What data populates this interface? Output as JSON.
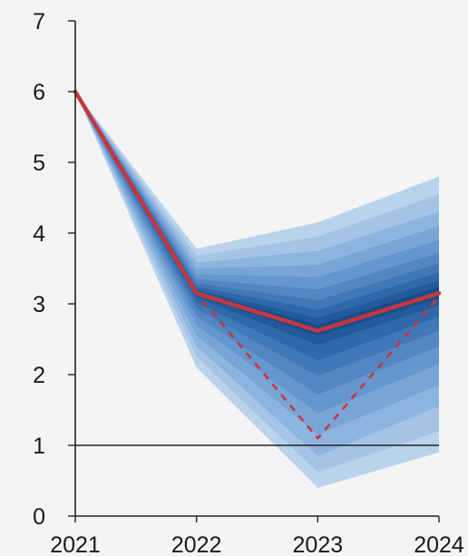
{
  "chart_data": {
    "type": "area",
    "title": "",
    "xlabel": "",
    "ylabel": "",
    "categories": [
      "2021",
      "2022",
      "2023",
      "2024"
    ],
    "x": [
      2021,
      2022,
      2023,
      2024
    ],
    "ylim": [
      0,
      7
    ],
    "yticks": [
      0,
      1,
      2,
      3,
      4,
      5,
      6,
      7
    ],
    "grid": false,
    "legend": "none",
    "reference_line": {
      "y": 1,
      "color": "#222222"
    },
    "central_projection": {
      "style": "solid",
      "color": "#c4373f",
      "values": [
        6.0,
        3.15,
        2.62,
        3.15
      ]
    },
    "alternative_path": {
      "style": "dashed",
      "color": "#c4373f",
      "values": [
        6.0,
        3.15,
        1.1,
        3.1
      ]
    },
    "fan_bands": [
      {
        "lower": [
          6.0,
          2.1,
          0.4,
          0.9
        ],
        "upper": [
          6.0,
          3.78,
          4.15,
          4.8
        ],
        "color": "#b9d3ec"
      },
      {
        "lower": [
          6.0,
          2.25,
          0.62,
          1.2
        ],
        "upper": [
          6.0,
          3.68,
          3.95,
          4.55
        ],
        "color": "#a4c4e6"
      },
      {
        "lower": [
          6.0,
          2.4,
          0.85,
          1.55
        ],
        "upper": [
          6.0,
          3.58,
          3.75,
          4.3
        ],
        "color": "#8db4de"
      },
      {
        "lower": [
          6.0,
          2.55,
          1.15,
          1.85
        ],
        "upper": [
          6.0,
          3.5,
          3.55,
          4.1
        ],
        "color": "#78a5d6"
      },
      {
        "lower": [
          6.0,
          2.7,
          1.45,
          2.15
        ],
        "upper": [
          6.0,
          3.42,
          3.38,
          3.9
        ],
        "color": "#6596cd"
      },
      {
        "lower": [
          6.0,
          2.82,
          1.72,
          2.4
        ],
        "upper": [
          6.0,
          3.35,
          3.2,
          3.72
        ],
        "color": "#5287c3"
      },
      {
        "lower": [
          6.0,
          2.93,
          1.98,
          2.62
        ],
        "upper": [
          6.0,
          3.29,
          3.05,
          3.57
        ],
        "color": "#4078b8"
      },
      {
        "lower": [
          6.0,
          3.02,
          2.2,
          2.82
        ],
        "upper": [
          6.0,
          3.24,
          2.92,
          3.44
        ],
        "color": "#3069ab"
      },
      {
        "lower": [
          6.0,
          3.09,
          2.42,
          2.98
        ],
        "upper": [
          6.0,
          3.2,
          2.8,
          3.33
        ],
        "color": "#225a9c"
      },
      {
        "lower": [
          6.0,
          3.12,
          2.55,
          3.08
        ],
        "upper": [
          6.0,
          3.18,
          2.7,
          3.24
        ],
        "color": "#194c8a"
      }
    ]
  }
}
